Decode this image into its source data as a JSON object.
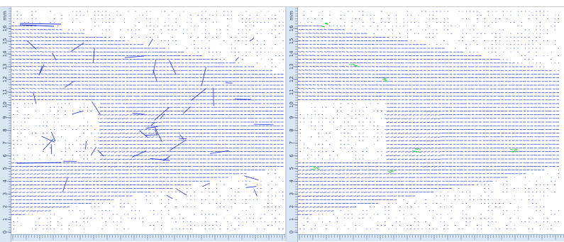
{
  "colors": {
    "vector": "#1f2fd8",
    "outlier": "#2bd13a",
    "ruler_bg": "#d9e6f4",
    "ruler_tick": "#6b7f9c"
  },
  "ruler": {
    "unit": "mm",
    "y_ticks": [
      "16",
      "15",
      "14",
      "13",
      "12",
      "11",
      "10",
      "9",
      "8",
      "7",
      "6",
      "5",
      "4",
      "3",
      "2",
      "1",
      "0"
    ]
  },
  "panels": [
    {
      "name": "raw-vector-field",
      "show_outliers": false,
      "spurious": true
    },
    {
      "name": "validated-vector-field",
      "show_outliers": true,
      "spurious": false
    }
  ]
}
